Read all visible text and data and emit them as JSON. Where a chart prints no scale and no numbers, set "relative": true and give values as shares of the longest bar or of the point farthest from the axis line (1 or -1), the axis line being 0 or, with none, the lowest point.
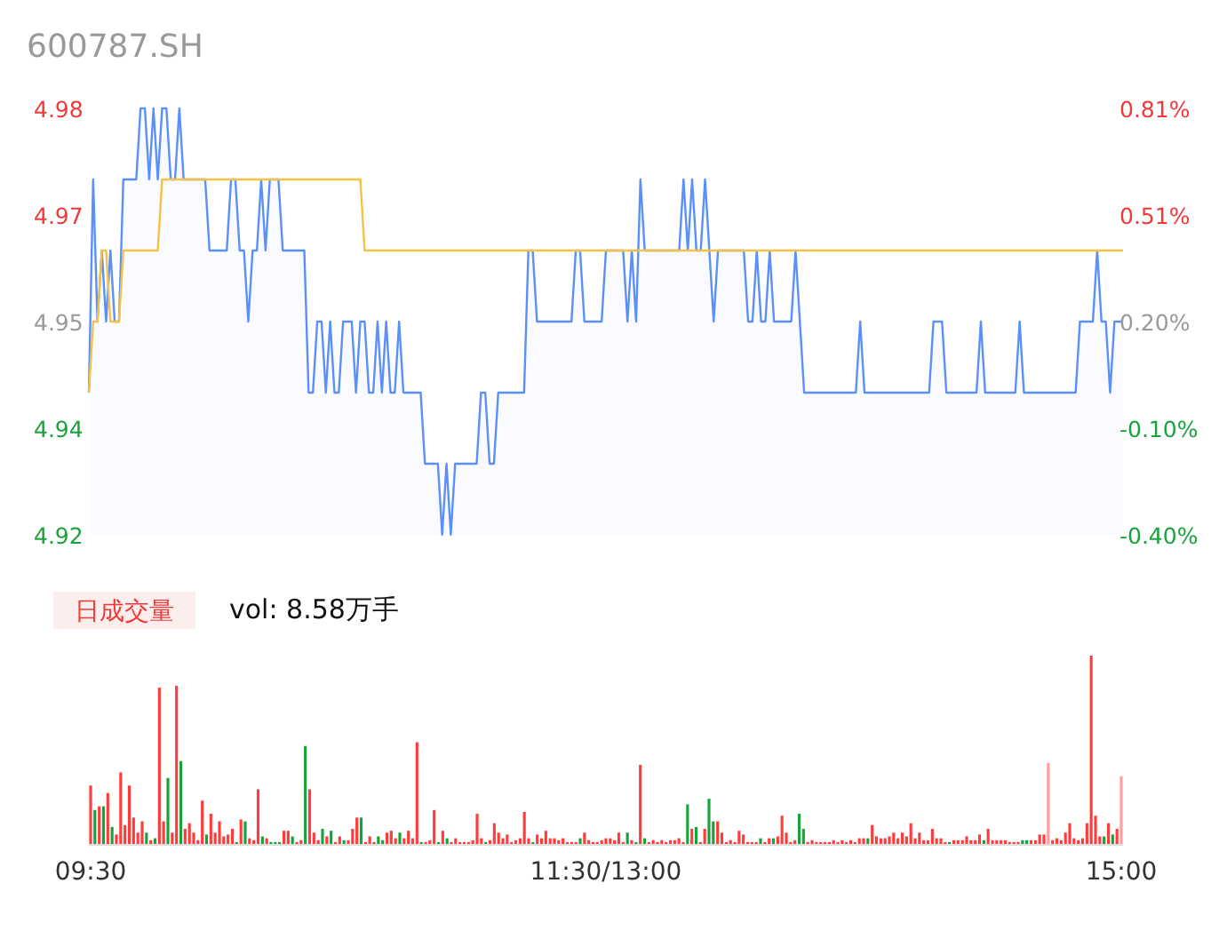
{
  "chart_data": [
    {
      "type": "line",
      "title": "600787.SH",
      "tick_labels": "y",
      "ylim": [
        4.92,
        4.98
      ],
      "categories": [
        null,
        null,
        null,
        null,
        null,
        null,
        null,
        null,
        null,
        null,
        null,
        null,
        null,
        null,
        null,
        null,
        null,
        null,
        null,
        null,
        null,
        null,
        null,
        null,
        null,
        null,
        null,
        null,
        null,
        null,
        null,
        null,
        null,
        null,
        null,
        null,
        null,
        null,
        null,
        null,
        null,
        null,
        null,
        null,
        null,
        null,
        null,
        null,
        null,
        null,
        null,
        null,
        null,
        null,
        null,
        null,
        null,
        null,
        null,
        null,
        null,
        null,
        null,
        null,
        null,
        null,
        null,
        null,
        null,
        null,
        null,
        null,
        null,
        null,
        null,
        null,
        null,
        null,
        null,
        null,
        null,
        null,
        null,
        null,
        null,
        null,
        null,
        null,
        null,
        null,
        null,
        null,
        null,
        null,
        null,
        null,
        null,
        null,
        null,
        null,
        null,
        null,
        null,
        null,
        null,
        null,
        null,
        null,
        null,
        null,
        null,
        null,
        null,
        null,
        null,
        null,
        null,
        null,
        null,
        null,
        null,
        null,
        null,
        null,
        null,
        null,
        null,
        null,
        null,
        null,
        null,
        null,
        null,
        null,
        null,
        null,
        null,
        null,
        null,
        null,
        null,
        null,
        null,
        null,
        null,
        null,
        null,
        null,
        null,
        null,
        null,
        null,
        null,
        null,
        null,
        null,
        null,
        null,
        null,
        null,
        null,
        null,
        null,
        null,
        null,
        null,
        null,
        null,
        null,
        null,
        null,
        null,
        null,
        null,
        null,
        null,
        null,
        null,
        null,
        null,
        null,
        null,
        null,
        null,
        null,
        null,
        null,
        null,
        null,
        null,
        null,
        null,
        null,
        null,
        null,
        null,
        null,
        null,
        null,
        null,
        null,
        null,
        null,
        null,
        null,
        null,
        null,
        null,
        null,
        null,
        null,
        null,
        null,
        null,
        null,
        null,
        null,
        null,
        null,
        null,
        null,
        null,
        null,
        null,
        null,
        null,
        null,
        null,
        null,
        null,
        null,
        null,
        null,
        null,
        null,
        null,
        null,
        null,
        null,
        null,
        null
      ],
      "yticks": [
        4.92,
        {
          "value": 4.935,
          "label": "4.94"
        },
        4.95,
        {
          "value": 4.965,
          "label": "4.97"
        },
        4.98
      ],
      "y2lim": [
        -0.4049,
        0.8097
      ],
      "y2ticks": [
        {
          "value": -0.4049,
          "label": "-0.40%"
        },
        {
          "value": -0.1012,
          "label": "-0.10%"
        },
        {
          "value": 0.2024,
          "label": "0.20%"
        },
        {
          "value": 0.5061,
          "label": "0.51%"
        },
        {
          "value": 0.8097,
          "label": "0.81%"
        }
      ],
      "series": [
        {
          "type": "area",
          "color": "#5b8ff9",
          "values": [
            4.94,
            4.97,
            4.95,
            4.96,
            4.95,
            4.96,
            4.95,
            4.95,
            4.97,
            4.97,
            4.97,
            4.97,
            4.98,
            4.98,
            4.97,
            4.98,
            4.97,
            4.98,
            4.98,
            4.97,
            4.97,
            4.98,
            4.97,
            4.97,
            4.97,
            4.97,
            4.97,
            4.97,
            4.96,
            4.96,
            4.96,
            4.96,
            4.96,
            4.97,
            4.97,
            4.96,
            4.96,
            4.95,
            4.96,
            4.96,
            4.97,
            4.96,
            4.97,
            4.97,
            4.97,
            4.96,
            4.96,
            4.96,
            4.96,
            4.96,
            4.96,
            4.94,
            4.94,
            4.95,
            4.95,
            4.94,
            4.95,
            4.94,
            4.94,
            4.95,
            4.95,
            4.95,
            4.94,
            4.95,
            4.95,
            4.94,
            4.94,
            4.95,
            4.94,
            4.95,
            4.94,
            4.94,
            4.95,
            4.94,
            4.94,
            4.94,
            4.94,
            4.94,
            4.93,
            4.93,
            4.93,
            4.93,
            4.92,
            4.93,
            4.92,
            4.93,
            4.93,
            4.93,
            4.93,
            4.93,
            4.93,
            4.94,
            4.94,
            4.93,
            4.93,
            4.94,
            4.94,
            4.94,
            4.94,
            4.94,
            4.94,
            4.94,
            4.96,
            4.96,
            4.95,
            4.95,
            4.95,
            4.95,
            4.95,
            4.95,
            4.95,
            4.95,
            4.95,
            4.96,
            4.96,
            4.95,
            4.95,
            4.95,
            4.95,
            4.95,
            4.96,
            4.96,
            4.96,
            4.96,
            4.96,
            4.95,
            4.96,
            4.95,
            4.97,
            4.96,
            4.96,
            4.96,
            4.96,
            4.96,
            4.96,
            4.96,
            4.96,
            4.96,
            4.97,
            4.96,
            4.97,
            4.96,
            4.96,
            4.97,
            4.96,
            4.95,
            4.96,
            4.96,
            4.96,
            4.96,
            4.96,
            4.96,
            4.96,
            4.95,
            4.95,
            4.96,
            4.95,
            4.95,
            4.96,
            4.95,
            4.95,
            4.95,
            4.95,
            4.95,
            4.96,
            4.95,
            4.94,
            4.94,
            4.94,
            4.94,
            4.94,
            4.94,
            4.94,
            4.94,
            4.94,
            4.94,
            4.94,
            4.94,
            4.94,
            4.95,
            4.94,
            4.94,
            4.94,
            4.94,
            4.94,
            4.94,
            4.94,
            4.94,
            4.94,
            4.94,
            4.94,
            4.94,
            4.94,
            4.94,
            4.94,
            4.94,
            4.95,
            4.95,
            4.95,
            4.94,
            4.94,
            4.94,
            4.94,
            4.94,
            4.94,
            4.94,
            4.94,
            4.95,
            4.94,
            4.94,
            4.94,
            4.94,
            4.94,
            4.94,
            4.94,
            4.94,
            4.95,
            4.94,
            4.94,
            4.94,
            4.94,
            4.94,
            4.94,
            4.94,
            4.94,
            4.94,
            4.94,
            4.94,
            4.94,
            4.94,
            4.95,
            4.95,
            4.95,
            4.95,
            4.96,
            4.95,
            4.95,
            4.94,
            4.95,
            4.95,
            4.95
          ]
        },
        {
          "type": "line",
          "color": "#f7c143",
          "values": [
            4.94,
            4.95,
            4.95,
            4.96,
            4.96,
            4.95,
            4.95,
            4.95,
            4.96,
            4.96,
            4.96,
            4.96,
            4.96,
            4.96,
            4.96,
            4.96,
            4.96,
            4.97,
            4.97,
            4.97,
            4.97,
            4.97,
            4.97,
            4.97,
            4.97,
            4.97,
            4.97,
            4.97,
            4.97,
            4.97,
            4.97,
            4.97,
            4.97,
            4.97,
            4.97,
            4.97,
            4.97,
            4.97,
            4.97,
            4.97,
            4.97,
            4.97,
            4.97,
            4.97,
            4.97,
            4.97,
            4.97,
            4.97,
            4.97,
            4.97,
            4.97,
            4.97,
            4.97,
            4.97,
            4.97,
            4.97,
            4.97,
            4.97,
            4.97,
            4.97,
            4.97,
            4.97,
            4.97,
            4.97,
            4.96,
            4.96,
            4.96,
            4.96,
            4.96,
            4.96,
            4.96,
            4.96,
            4.96,
            4.96,
            4.96,
            4.96,
            4.96,
            4.96,
            4.96,
            4.96,
            4.96,
            4.96,
            4.96,
            4.96,
            4.96,
            4.96,
            4.96,
            4.96,
            4.96,
            4.96,
            4.96,
            4.96,
            4.96,
            4.96,
            4.96,
            4.96,
            4.96,
            4.96,
            4.96,
            4.96,
            4.96,
            4.96,
            4.96,
            4.96,
            4.96,
            4.96,
            4.96,
            4.96,
            4.96,
            4.96,
            4.96,
            4.96,
            4.96,
            4.96,
            4.96,
            4.96,
            4.96,
            4.96,
            4.96,
            4.96,
            4.96,
            4.96,
            4.96,
            4.96,
            4.96,
            4.96,
            4.96,
            4.96,
            4.96,
            4.96,
            4.96,
            4.96,
            4.96,
            4.96,
            4.96,
            4.96,
            4.96,
            4.96,
            4.96,
            4.96,
            4.96,
            4.96,
            4.96,
            4.96,
            4.96,
            4.96,
            4.96,
            4.96,
            4.96,
            4.96,
            4.96,
            4.96,
            4.96,
            4.96,
            4.96,
            4.96,
            4.96,
            4.96,
            4.96,
            4.96,
            4.96,
            4.96,
            4.96,
            4.96,
            4.96,
            4.96,
            4.96,
            4.96,
            4.96,
            4.96,
            4.96,
            4.96,
            4.96,
            4.96,
            4.96,
            4.96,
            4.96,
            4.96,
            4.96,
            4.96,
            4.96,
            4.96,
            4.96,
            4.96,
            4.96,
            4.96,
            4.96,
            4.96,
            4.96,
            4.96,
            4.96,
            4.96,
            4.96,
            4.96,
            4.96,
            4.96,
            4.96,
            4.96,
            4.96,
            4.96,
            4.96,
            4.96,
            4.96,
            4.96,
            4.96,
            4.96,
            4.96,
            4.96,
            4.96,
            4.96,
            4.96,
            4.96,
            4.96,
            4.96,
            4.96,
            4.96,
            4.96,
            4.96,
            4.96,
            4.96,
            4.96,
            4.96,
            4.96,
            4.96,
            4.96,
            4.96,
            4.96,
            4.96,
            4.96,
            4.96,
            4.96,
            4.96,
            4.96,
            4.96,
            4.96,
            4.96,
            4.96,
            4.96,
            4.96,
            4.96,
            4.96
          ]
        }
      ]
    },
    {
      "type": "bar",
      "relative": true,
      "annotations": [
        "日成交量",
        "vol: 8.58万手"
      ],
      "categories": [
        "09:30",
        null,
        null,
        null,
        null,
        null,
        null,
        null,
        null,
        null,
        null,
        null,
        null,
        null,
        null,
        null,
        null,
        null,
        null,
        null,
        null,
        null,
        null,
        null,
        null,
        null,
        null,
        null,
        null,
        null,
        null,
        null,
        null,
        null,
        null,
        null,
        null,
        null,
        null,
        null,
        null,
        null,
        null,
        null,
        null,
        null,
        null,
        null,
        null,
        null,
        null,
        null,
        null,
        null,
        null,
        null,
        null,
        null,
        null,
        null,
        null,
        null,
        null,
        null,
        null,
        null,
        null,
        null,
        null,
        null,
        null,
        null,
        null,
        null,
        null,
        null,
        null,
        null,
        null,
        null,
        null,
        null,
        null,
        null,
        null,
        null,
        null,
        null,
        null,
        null,
        null,
        null,
        null,
        null,
        null,
        null,
        null,
        null,
        null,
        null,
        null,
        null,
        null,
        null,
        null,
        null,
        null,
        null,
        null,
        null,
        null,
        null,
        null,
        null,
        null,
        null,
        null,
        null,
        null,
        null,
        "11:30/13:00",
        null,
        null,
        null,
        null,
        null,
        null,
        null,
        null,
        null,
        null,
        null,
        null,
        null,
        null,
        null,
        null,
        null,
        null,
        null,
        null,
        null,
        null,
        null,
        null,
        null,
        null,
        null,
        null,
        null,
        null,
        null,
        null,
        null,
        null,
        null,
        null,
        null,
        null,
        null,
        null,
        null,
        null,
        null,
        null,
        null,
        null,
        null,
        null,
        null,
        null,
        null,
        null,
        null,
        null,
        null,
        null,
        null,
        null,
        null,
        null,
        null,
        null,
        null,
        null,
        null,
        null,
        null,
        null,
        null,
        null,
        null,
        null,
        null,
        null,
        null,
        null,
        null,
        null,
        null,
        null,
        null,
        null,
        null,
        null,
        null,
        null,
        null,
        null,
        null,
        null,
        null,
        null,
        null,
        null,
        null,
        null,
        null,
        null,
        null,
        null,
        null,
        null,
        null,
        null,
        null,
        null,
        null,
        null,
        null,
        null,
        null,
        null,
        null,
        null,
        null,
        null,
        null,
        null,
        null,
        "15:00"
      ],
      "values": [
        0.31,
        0.18,
        0.2,
        0.2,
        0.27,
        0.09,
        0.05,
        0.38,
        0.1,
        0.31,
        0.14,
        0.06,
        0.12,
        0.06,
        0.02,
        0.03,
        0.83,
        0.12,
        0.35,
        0.06,
        0.84,
        0.44,
        0.08,
        0.11,
        0.06,
        0.02,
        0.23,
        0.05,
        0.16,
        0.06,
        0.12,
        0.04,
        0.05,
        0.08,
        0.01,
        0.13,
        0.12,
        0.03,
        0.02,
        0.29,
        0.04,
        0.03,
        0.01,
        0.01,
        0.01,
        0.07,
        0.07,
        0.04,
        0.01,
        0.02,
        0.52,
        0.29,
        0.06,
        0.02,
        0.08,
        0.04,
        0.07,
        0.01,
        0.04,
        0.02,
        0.02,
        0.08,
        0.14,
        0.14,
        0.01,
        0.04,
        0.01,
        0.04,
        0.02,
        0.06,
        0.07,
        0.03,
        0.06,
        0.03,
        0.07,
        0.03,
        0.54,
        0.01,
        0.01,
        0.02,
        0.18,
        0.01,
        0.07,
        0.03,
        0.01,
        0.03,
        0.01,
        0.01,
        0.01,
        0.02,
        0.16,
        0.03,
        0.01,
        0.02,
        0.11,
        0.06,
        0.03,
        0.05,
        0.01,
        0.02,
        0.03,
        0.17,
        0.03,
        0.01,
        0.05,
        0.03,
        0.07,
        0.03,
        0.03,
        0.02,
        0.03,
        0.01,
        0.01,
        0.01,
        0.03,
        0.06,
        0.02,
        0.01,
        0.01,
        0.02,
        0.03,
        0.03,
        0.02,
        0.06,
        0.01,
        0.06,
        0.02,
        0.01,
        0.42,
        0.03,
        0.01,
        0.02,
        0.01,
        0.02,
        0.01,
        0.02,
        0.02,
        0.03,
        0.01,
        0.21,
        0.08,
        0.09,
        0.01,
        0.08,
        0.24,
        0.12,
        0.12,
        0.06,
        0.01,
        0.02,
        0.01,
        0.07,
        0.05,
        0.01,
        0.01,
        0.01,
        0.03,
        0.01,
        0.03,
        0.03,
        0.04,
        0.15,
        0.06,
        0.01,
        0.02,
        0.16,
        0.08,
        0.01,
        0.02,
        0.01,
        0.01,
        0.01,
        0.01,
        0.02,
        0.01,
        0.02,
        0.01,
        0.02,
        0.01,
        0.03,
        0.03,
        0.03,
        0.1,
        0.04,
        0.03,
        0.03,
        0.04,
        0.06,
        0.03,
        0.06,
        0.04,
        0.11,
        0.03,
        0.06,
        0.02,
        0.02,
        0.08,
        0.03,
        0.03,
        0.01,
        0.01,
        0.02,
        0.02,
        0.02,
        0.04,
        0.02,
        0.02,
        0.05,
        0.02,
        0.08,
        0.02,
        0.02,
        0.02,
        0.02,
        0.01,
        0.01,
        0.01,
        0.02,
        0.02,
        0.02,
        0.02,
        0.05,
        0.05,
        0.43,
        0.02,
        0.03,
        0.02,
        0.06,
        0.11,
        0.03,
        0.02,
        0.03,
        0.11,
        1.0,
        0.15,
        0.04,
        0.04,
        0.11,
        0.05,
        0.08,
        0.36
      ],
      "colors": [
        "#ff3b3b",
        "#16a33a",
        "#ff3b3b",
        "#16a33a",
        "#ff3b3b",
        "#16a33a",
        "#ff3b3b",
        "#ff3b3b",
        "#ff3b3b",
        "#ff3b3b",
        "#ff3b3b",
        "#ff3b3b",
        "#ff3b3b",
        "#16a33a",
        "#ff3b3b",
        "#16a33a",
        "#ff3b3b",
        "#ff3b3b",
        "#16a33a",
        "#ff3b3b",
        "#ff3b3b",
        "#16a33a",
        "#ff3b3b",
        "#ff3b3b",
        "#ff3b3b",
        "#ff3b3b",
        "#ff3b3b",
        "#16a33a",
        "#ff3b3b",
        "#ff3b3b",
        "#ff3b3b",
        "#ff3b3b",
        "#ff3b3b",
        "#ff3b3b",
        "#16a33a",
        "#ff3b3b",
        "#16a33a",
        "#ff3b3b",
        "#ff3b3b",
        "#ff3b3b",
        "#16a33a",
        "#ff3b3b",
        "#16a33a",
        "#16a33a",
        "#16a33a",
        "#ff3b3b",
        "#ff3b3b",
        "#16a33a",
        "#ff3b3b",
        "#ff3b3b",
        "#16a33a",
        "#ff3b3b",
        "#ff3b3b",
        "#ff3b3b",
        "#16a33a",
        "#ff3b3b",
        "#16a33a",
        "#ff3b3b",
        "#ff3b3b",
        "#16a33a",
        "#ff3b3b",
        "#ff3b3b",
        "#ff3b3b",
        "#16a33a",
        "#ff3b3b",
        "#ff3b3b",
        "#ff3b3b",
        "#16a33a",
        "#16a33a",
        "#ff3b3b",
        "#ff3b3b",
        "#ff3b3b",
        "#16a33a",
        "#ff3b3b",
        "#ff3b3b",
        "#ff3b3b",
        "#ff3b3b",
        "#16a33a",
        "#ff3b3b",
        "#ff3b3b",
        "#ff3b3b",
        "#16a33a",
        "#ff3b3b",
        "#16a33a",
        "#ff3b3b",
        "#ff3b3b",
        "#ff3b3b",
        "#ff3b3b",
        "#ff3b3b",
        "#ff3b3b",
        "#ff3b3b",
        "#ff3b3b",
        "#16a33a",
        "#ff3b3b",
        "#ff3b3b",
        "#ff3b3b",
        "#ff3b3b",
        "#ff3b3b",
        "#ff3b3b",
        "#ff3b3b",
        "#ff3b3b",
        "#ff3b3b",
        "#ff3b3b",
        "#16a33a",
        "#ff3b3b",
        "#ff3b3b",
        "#ff3b3b",
        "#ff3b3b",
        "#ff3b3b",
        "#ff3b3b",
        "#ff3b3b",
        "#ff3b3b",
        "#ff3b3b",
        "#ff3b3b",
        "#16a33a",
        "#ff3b3b",
        "#ff3b3b",
        "#ff3b3b",
        "#ff3b3b",
        "#ff3b3b",
        "#ff3b3b",
        "#ff3b3b",
        "#ff3b3b",
        "#ff3b3b",
        "#ff3b3b",
        "#16a33a",
        "#ff3b3b",
        "#16a33a",
        "#ff3b3b",
        "#16a33a",
        "#ff3b3b",
        "#ff3b3b",
        "#ff3b3b",
        "#ff3b3b",
        "#ff3b3b",
        "#ff3b3b",
        "#ff3b3b",
        "#ff3b3b",
        "#ff3b3b",
        "#16a33a",
        "#ff3b3b",
        "#16a33a",
        "#ff3b3b",
        "#ff3b3b",
        "#16a33a",
        "#16a33a",
        "#ff3b3b",
        "#ff3b3b",
        "#ff3b3b",
        "#ff3b3b",
        "#ff3b3b",
        "#ff3b3b",
        "#ff3b3b",
        "#ff3b3b",
        "#ff3b3b",
        "#ff3b3b",
        "#16a33a",
        "#ff3b3b",
        "#ff3b3b",
        "#16a33a",
        "#ff3b3b",
        "#ff3b3b",
        "#ff3b3b",
        "#ff3b3b",
        "#ff3b3b",
        "#16a33a",
        "#16a33a",
        "#ff3b3b",
        "#ff3b3b",
        "#ff3b3b",
        "#ff3b3b",
        "#ff3b3b",
        "#ff3b3b",
        "#ff3b3b",
        "#ff3b3b",
        "#ff3b3b",
        "#ff3b3b",
        "#ff3b3b",
        "#ff3b3b",
        "#ff3b3b",
        "#ff3b3b",
        "#16a33a",
        "#ff3b3b",
        "#ff3b3b",
        "#ff3b3b",
        "#ff3b3b",
        "#ff3b3b",
        "#ff3b3b",
        "#ff3b3b",
        "#ff3b3b",
        "#ff3b3b",
        "#ff3b3b",
        "#ff3b3b",
        "#ff3b3b",
        "#ff3b3b",
        "#ff3b3b",
        "#ff3b3b",
        "#ff3b3b",
        "#ff3b3b",
        "#ff3b3b",
        "#16a33a",
        "#ff3b3b",
        "#ff3b3b",
        "#ff3b3b",
        "#ff3b3b",
        "#ff3b3b",
        "#ff3b3b",
        "#ff3b3b",
        "#16a33a",
        "#ff3b3b",
        "#ff3b3b",
        "#ff3b3b",
        "#ff3b3b",
        "#ff3b3b",
        "#ff3b3b",
        "#ff3b3b",
        "#ff3b3b",
        "#16a33a",
        "#16a33a",
        "#ff3b3b",
        "#ff3b3b",
        "#ff3b3b",
        "#ff3b3b",
        "#ff9e9e",
        "#ff3b3b",
        "#ff3b3b",
        "#ff3b3b",
        "#ff3b3b",
        "#ff3b3b",
        "#ff3b3b",
        "#ff3b3b",
        "#ff3b3b",
        "#ff3b3b",
        "#ff3b3b",
        "#ff3b3b",
        "#ff3b3b",
        "#16a33a",
        "#ff3b3b",
        "#16a33a",
        "#ff3b3b",
        "#ff9e9e"
      ]
    }
  ]
}
